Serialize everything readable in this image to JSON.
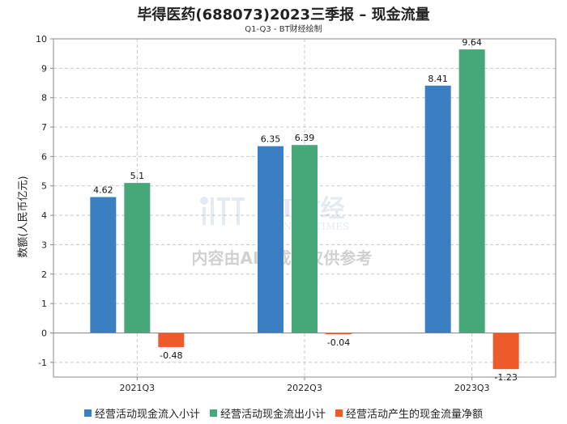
{
  "title": "毕得医药(688073)2023三季报 – 现金流量",
  "subtitle": "Q1-Q3 - BT财经绘制",
  "watermark": {
    "logo_text": "BT财经",
    "logo_subtext": "BUSINESS TIMES",
    "notice": "内容由AI生成，仅供参考"
  },
  "chart_data": {
    "type": "bar",
    "title": "毕得医药(688073)2023三季报 – 现金流量",
    "subtitle": "Q1-Q3 - BT财经绘制",
    "xlabel": "",
    "ylabel": "数额(人民币亿元)",
    "categories": [
      "2021Q3",
      "2022Q3",
      "2023Q3"
    ],
    "ylim": [
      -1.5,
      10
    ],
    "yticks": [
      -1,
      0,
      1,
      2,
      3,
      4,
      5,
      6,
      7,
      8,
      9,
      10
    ],
    "grid": true,
    "legend_position": "bottom",
    "series": [
      {
        "name": "经营活动现金流入小计",
        "color": "#3a7fc1",
        "values": [
          4.62,
          6.35,
          8.41
        ],
        "labels": [
          "4.62",
          "6.35",
          "8.41"
        ]
      },
      {
        "name": "经营活动现金流出小计",
        "color": "#46a879",
        "values": [
          5.1,
          6.39,
          9.64
        ],
        "labels": [
          "5.1",
          "6.39",
          "9.64"
        ]
      },
      {
        "name": "经营活动产生的现金流量净额",
        "color": "#ef5a2a",
        "values": [
          -0.48,
          -0.04,
          -1.23
        ],
        "labels": [
          "-0.48",
          "-0.04",
          "-1.23"
        ]
      }
    ]
  }
}
